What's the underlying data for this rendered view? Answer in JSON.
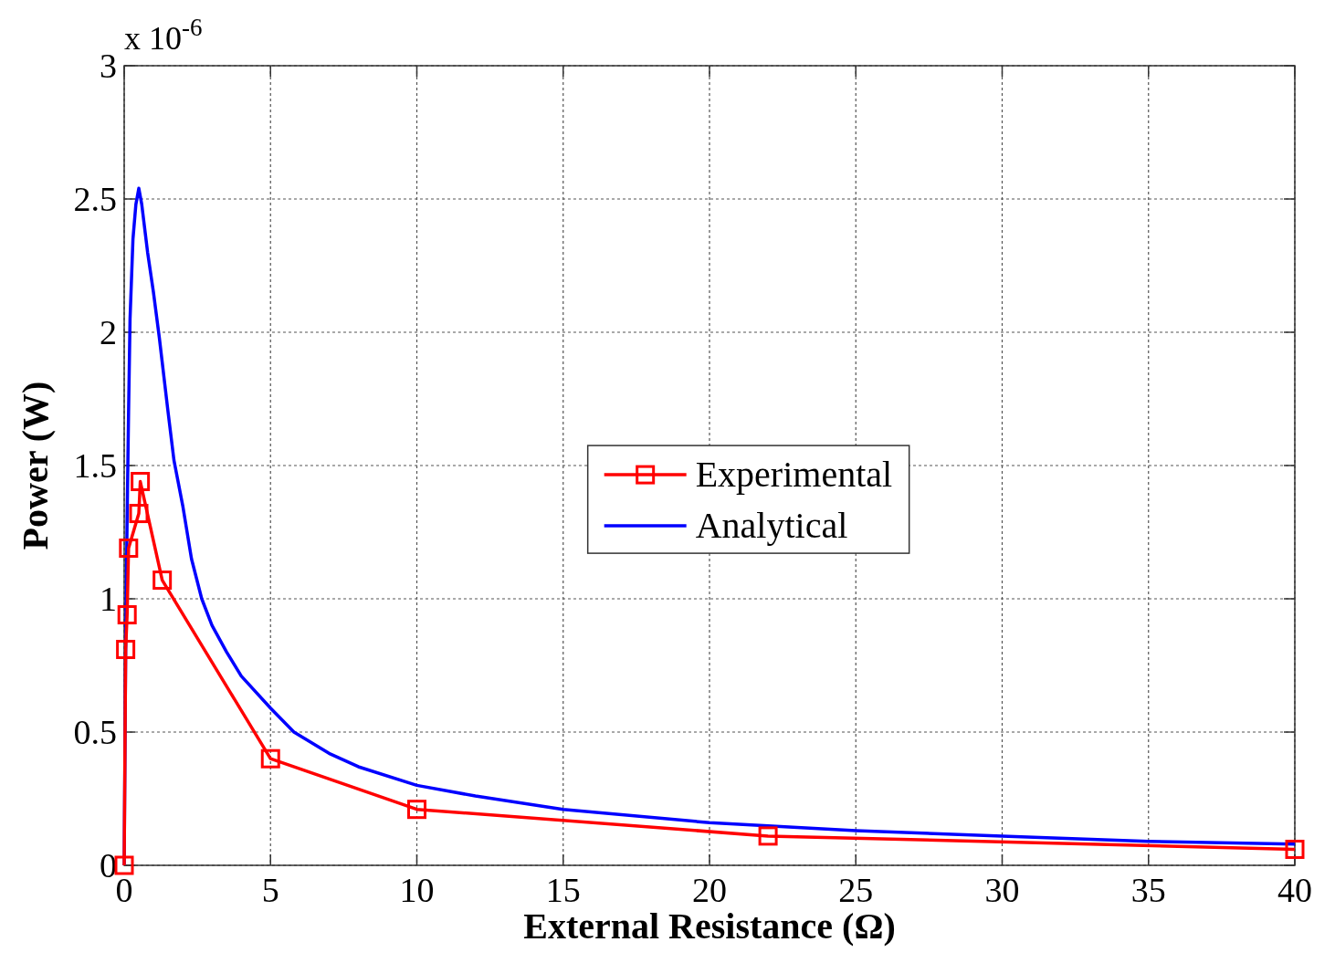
{
  "chart_data": {
    "type": "line",
    "xlabel": "External Resistance (Ω)",
    "ylabel": "Power (W)",
    "annotations": [
      "x 10$^{-6}$"
    ],
    "xlim": [
      0,
      40
    ],
    "xticks": [
      0,
      5,
      10,
      15,
      20,
      25,
      30,
      35,
      40
    ],
    "ylim": [
      0,
      3
    ],
    "yticks": [
      0,
      0.5,
      1,
      1.5,
      2,
      2.5,
      3
    ],
    "grid": true,
    "legend": "right",
    "series": [
      {
        "name": "Experimental",
        "color": "#ff0000",
        "marker": "square",
        "x": [
          0,
          0.05,
          0.1,
          0.15,
          0.5,
          0.55,
          1.3,
          5,
          10,
          22,
          40
        ],
        "values": [
          0,
          0.81,
          0.94,
          1.19,
          1.32,
          1.44,
          1.07,
          0.4,
          0.21,
          0.11,
          0.06
        ]
      },
      {
        "name": "Analytical",
        "color": "#0000ff",
        "marker": "none",
        "x": [
          0,
          0.05,
          0.1,
          0.15,
          0.2,
          0.3,
          0.4,
          0.5,
          0.6,
          0.8,
          1.0,
          1.2,
          1.5,
          1.7,
          2,
          2.3,
          2.65,
          3,
          3.5,
          4,
          5,
          5.8,
          7,
          8,
          10,
          12,
          15,
          20,
          25,
          30,
          35,
          40
        ],
        "values": [
          0,
          0.8,
          1.3,
          1.7,
          2.05,
          2.35,
          2.48,
          2.54,
          2.48,
          2.3,
          2.15,
          1.98,
          1.7,
          1.52,
          1.35,
          1.15,
          1.0,
          0.9,
          0.8,
          0.71,
          0.59,
          0.5,
          0.42,
          0.37,
          0.3,
          0.26,
          0.21,
          0.16,
          0.13,
          0.11,
          0.09,
          0.08
        ]
      }
    ]
  }
}
